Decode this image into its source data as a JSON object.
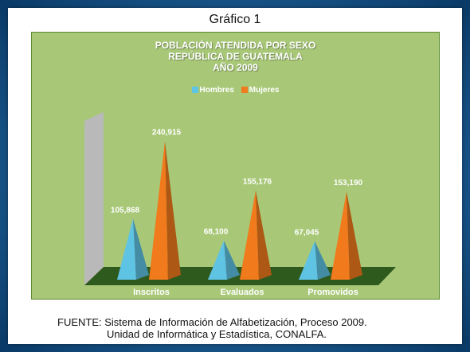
{
  "slide": {
    "heading": "Gráfico 1",
    "footnote": {
      "line1": "FUENTE:   Sistema de Información de Alfabetización, Proceso 2009.",
      "line2": "Unidad de Informática y Estadística, CONALFA."
    }
  },
  "colors": {
    "hombres": "#5fc3e4",
    "mujeres": "#f07a1c",
    "chart_background": "#a8c878",
    "floor": "#2f5a1e",
    "side_wall": "#b9b9b9"
  },
  "chart_data": {
    "type": "bar",
    "title_lines": [
      "POBLACIÓN ATENDIDA POR SEXO",
      "REPÚBLICA DE GUATEMALA",
      "AÑO 2009"
    ],
    "categories": [
      "Inscritos",
      "Evaluados",
      "Promovidos"
    ],
    "series": [
      {
        "name": "Hombres",
        "values": [
          105868,
          68100,
          67045
        ],
        "labels": [
          "105,868",
          "68,100",
          "67,045"
        ]
      },
      {
        "name": "Mujeres",
        "values": [
          240915,
          155176,
          153190
        ],
        "labels": [
          "240,915",
          "155,176",
          "153,190"
        ]
      }
    ],
    "ylim": [
      0,
      250000
    ],
    "grid": false,
    "legend_position": "top"
  }
}
